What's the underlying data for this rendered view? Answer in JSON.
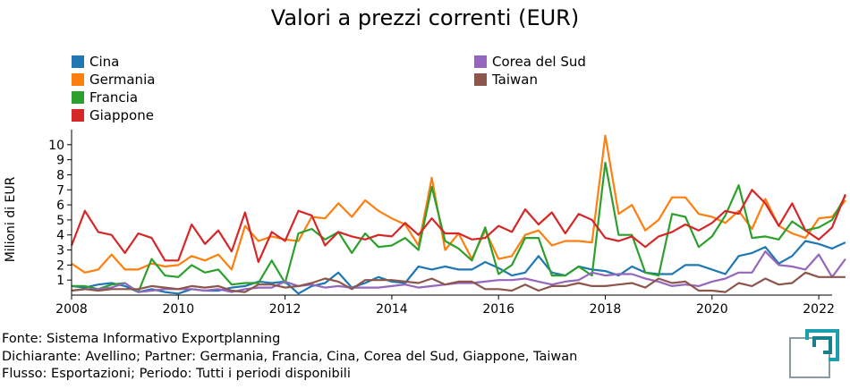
{
  "chart_data": {
    "type": "line",
    "title": "Valori a prezzi correnti (EUR)",
    "ylabel": "Milioni di EUR",
    "xlabel": "",
    "xlim": [
      2008.0,
      2022.25
    ],
    "ylim": [
      0,
      11
    ],
    "x_ticks": [
      2008,
      2010,
      2012,
      2014,
      2016,
      2018,
      2020,
      2022
    ],
    "y_ticks": [
      1,
      2,
      3,
      4,
      5,
      6,
      7,
      8,
      9,
      10
    ],
    "x_start": 2008.0,
    "x_step": 0.25,
    "legend_placement": "top",
    "series": [
      {
        "name": "Cina",
        "color": "#1f77b4",
        "values": [
          0.6,
          0.5,
          0.7,
          0.8,
          0.6,
          0.2,
          0.4,
          0.2,
          0.1,
          0.4,
          0.3,
          0.3,
          0.5,
          0.6,
          0.9,
          0.8,
          0.9,
          0.1,
          0.6,
          0.8,
          1.5,
          0.5,
          0.8,
          1.2,
          0.9,
          0.8,
          1.9,
          1.7,
          1.9,
          1.7,
          1.7,
          2.2,
          1.8,
          1.3,
          1.5,
          2.6,
          1.5,
          1.3,
          1.9,
          1.7,
          1.6,
          1.3,
          1.9,
          1.5,
          1.4,
          1.4,
          2.0,
          2.0,
          1.7,
          1.4,
          2.6,
          2.8,
          3.2,
          2.1,
          2.6,
          3.6,
          3.4,
          3.1,
          3.5
        ]
      },
      {
        "name": "Germania",
        "color": "#ff7f0e",
        "values": [
          2.1,
          1.5,
          1.7,
          2.7,
          1.7,
          1.7,
          2.1,
          1.9,
          2.0,
          2.6,
          2.3,
          2.7,
          1.7,
          4.6,
          3.6,
          3.9,
          3.7,
          3.6,
          5.2,
          5.1,
          6.1,
          5.2,
          6.3,
          5.6,
          5.1,
          4.7,
          3.3,
          7.8,
          3.0,
          4.1,
          2.4,
          4.3,
          2.4,
          2.6,
          4.0,
          4.3,
          3.3,
          3.6,
          3.6,
          3.5,
          10.6,
          5.4,
          6.0,
          4.3,
          5.0,
          6.5,
          6.5,
          5.4,
          5.2,
          4.8,
          5.6,
          4.4,
          6.4,
          4.6,
          4.1,
          3.8,
          5.1,
          5.2,
          6.3
        ]
      },
      {
        "name": "Francia",
        "color": "#2ca02c",
        "values": [
          0.6,
          0.6,
          0.4,
          0.7,
          0.8,
          0.2,
          2.4,
          1.3,
          1.2,
          2.0,
          1.5,
          1.7,
          0.7,
          0.8,
          0.8,
          2.3,
          0.8,
          4.1,
          4.4,
          3.7,
          4.2,
          2.8,
          4.1,
          3.2,
          3.3,
          3.8,
          3.0,
          7.2,
          3.6,
          3.1,
          2.3,
          4.5,
          1.4,
          2.0,
          3.8,
          3.8,
          1.3,
          1.3,
          1.9,
          1.3,
          8.8,
          4.0,
          4.0,
          1.5,
          1.3,
          5.4,
          5.2,
          3.2,
          3.9,
          5.3,
          7.3,
          3.8,
          3.9,
          3.7,
          4.9,
          4.3,
          4.5,
          5.0,
          6.6
        ]
      },
      {
        "name": "Giappone",
        "color": "#d62728",
        "values": [
          3.3,
          5.6,
          4.2,
          4.0,
          2.8,
          4.1,
          3.8,
          2.3,
          2.3,
          4.7,
          3.4,
          4.3,
          2.9,
          5.5,
          2.2,
          4.2,
          3.6,
          5.6,
          5.3,
          3.3,
          4.2,
          3.9,
          3.7,
          4.0,
          3.9,
          4.8,
          4.0,
          5.1,
          4.1,
          4.1,
          3.7,
          3.8,
          4.6,
          4.2,
          5.7,
          4.7,
          5.5,
          4.1,
          5.4,
          5.0,
          3.8,
          3.6,
          3.9,
          3.2,
          3.9,
          4.2,
          4.7,
          4.3,
          4.8,
          5.6,
          5.4,
          7.0,
          6.1,
          4.6,
          6.1,
          4.3,
          3.7,
          4.5,
          6.7
        ]
      },
      {
        "name": "Corea del Sud",
        "color": "#9467bd",
        "values": [
          0.3,
          0.4,
          0.4,
          0.5,
          0.8,
          0.2,
          0.3,
          0.4,
          0.4,
          0.4,
          0.3,
          0.4,
          0.2,
          0.4,
          0.5,
          0.5,
          0.9,
          0.6,
          0.7,
          0.5,
          0.6,
          0.5,
          0.5,
          0.5,
          0.6,
          0.7,
          0.5,
          0.6,
          0.7,
          0.8,
          0.8,
          0.9,
          1.0,
          1.0,
          1.1,
          0.9,
          0.7,
          0.9,
          1.0,
          1.5,
          1.3,
          1.4,
          1.4,
          1.1,
          0.9,
          0.6,
          0.7,
          0.6,
          0.9,
          1.1,
          1.5,
          1.5,
          2.9,
          2.0,
          1.9,
          1.7,
          2.7,
          1.2,
          2.4
        ]
      },
      {
        "name": "Taiwan",
        "color": "#8c564b",
        "values": [
          0.3,
          0.4,
          0.3,
          0.4,
          0.4,
          0.4,
          0.6,
          0.5,
          0.4,
          0.6,
          0.5,
          0.6,
          0.3,
          0.2,
          0.7,
          0.7,
          0.5,
          0.6,
          0.8,
          1.1,
          0.9,
          0.4,
          1.0,
          1.0,
          1.0,
          0.9,
          0.8,
          1.1,
          0.7,
          0.9,
          0.9,
          0.4,
          0.4,
          0.3,
          0.7,
          0.3,
          0.6,
          0.6,
          0.8,
          0.6,
          0.6,
          0.7,
          0.8,
          0.5,
          1.1,
          0.8,
          0.9,
          0.3,
          0.3,
          0.2,
          0.8,
          0.6,
          1.1,
          0.7,
          0.8,
          1.5,
          1.2,
          1.2,
          1.2
        ]
      }
    ]
  },
  "footer": {
    "line1": "Fonte: Sistema Informativo Exportplanning",
    "line2": "Dichiarante: Avellino; Partner: Germania, Francia, Cina, Corea del Sud, Giappone, Taiwan",
    "line3": "Flusso: Esportazioni; Periodo: Tutti i periodi disponibili"
  },
  "logo": {
    "icon": "exportplanning-logo-icon",
    "color": "#1a7f8c"
  }
}
